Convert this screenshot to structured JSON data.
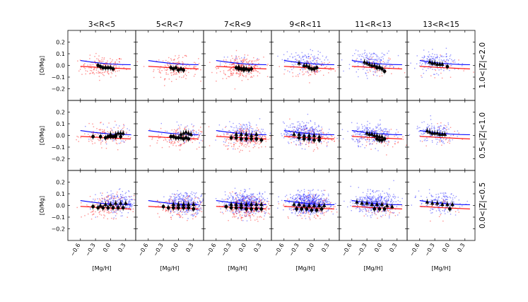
{
  "chart_data": {
    "type": "scatter",
    "description_grid": "3 rows (|Z| bins) x 6 columns (R bins)",
    "col_titles": [
      "3<R<5",
      "5<R<7",
      "7<R<9",
      "9<R<11",
      "11<R<13",
      "13<R<15"
    ],
    "row_labels": [
      "1.0<|Z|<2.0",
      "0.5<|Z|<1.0",
      "0.0<|Z|<0.5"
    ],
    "xlabel": "[Mg/H]",
    "ylabel": "[O/Mg]",
    "xlim": [
      -0.85,
      0.5
    ],
    "ylim": [
      -0.3,
      0.3
    ],
    "xticks": [
      -0.6,
      -0.3,
      0.0,
      0.3
    ],
    "xtick_labels": [
      "−0.6",
      "−0.3",
      "0.0",
      "0.3"
    ],
    "yticks": [
      -0.2,
      -0.1,
      0.0,
      0.1,
      0.2
    ],
    "ytick_labels": [
      "−0.2",
      "−0.1",
      "0.0",
      "0.1",
      "0.2"
    ],
    "colors": {
      "high_alpha": "#ff3333",
      "low_alpha": "#3333ff",
      "model_blue": "#0000ff",
      "model_red": "#ff0000",
      "binned": "#000000"
    },
    "series": [
      {
        "name": "red model track",
        "x": [
          -0.6,
          -0.4,
          -0.2,
          0.0,
          0.2,
          0.4
        ],
        "y": [
          -0.008,
          -0.013,
          -0.018,
          -0.022,
          -0.026,
          -0.03
        ]
      },
      {
        "name": "blue model track",
        "x": [
          -0.6,
          -0.4,
          -0.2,
          0.0,
          0.2,
          0.4
        ],
        "y": [
          0.042,
          0.03,
          0.02,
          0.012,
          0.008,
          0.006
        ]
      }
    ],
    "panels": [
      {
        "row": 0,
        "col": 0,
        "red_n": 170,
        "blue_n": 0,
        "red_cx": -0.15,
        "red_cy": -0.01,
        "blue_cx": 0,
        "blue_cy": 0,
        "circles": [
          [
            -0.25,
            0.0
          ],
          [
            -0.2,
            -0.01
          ],
          [
            -0.15,
            -0.02
          ],
          [
            -0.1,
            -0.02
          ],
          [
            -0.05,
            -0.02
          ],
          [
            0.0,
            -0.02
          ],
          [
            0.05,
            -0.03
          ]
        ],
        "triangles": []
      },
      {
        "row": 0,
        "col": 1,
        "red_n": 160,
        "blue_n": 0,
        "red_cx": -0.05,
        "red_cy": -0.02,
        "blue_cx": 0,
        "blue_cy": 0,
        "circles": [
          [
            -0.15,
            -0.02
          ],
          [
            -0.1,
            -0.03
          ],
          [
            -0.05,
            -0.02
          ],
          [
            0.0,
            -0.04
          ],
          [
            0.05,
            -0.03
          ],
          [
            0.1,
            -0.04
          ]
        ],
        "triangles": []
      },
      {
        "row": 0,
        "col": 2,
        "red_n": 260,
        "blue_n": 20,
        "red_cx": -0.1,
        "red_cy": -0.02,
        "blue_cx": -0.1,
        "blue_cy": 0.02,
        "circles": [
          [
            -0.2,
            -0.02
          ],
          [
            -0.15,
            -0.03
          ],
          [
            -0.1,
            -0.03
          ],
          [
            -0.05,
            -0.04
          ],
          [
            0.0,
            -0.03
          ],
          [
            0.05,
            -0.04
          ],
          [
            0.1,
            -0.03
          ]
        ],
        "triangles": [
          [
            -0.15,
            -0.01
          ],
          [
            -0.05,
            -0.02
          ]
        ]
      },
      {
        "row": 0,
        "col": 3,
        "red_n": 100,
        "blue_n": 150,
        "red_cx": -0.05,
        "red_cy": -0.02,
        "blue_cx": -0.2,
        "blue_cy": 0.03,
        "circles": [
          [
            -0.1,
            -0.02
          ],
          [
            -0.05,
            -0.03
          ],
          [
            0.0,
            -0.03
          ],
          [
            0.05,
            -0.02
          ]
        ],
        "triangles": [
          [
            -0.3,
            0.02
          ],
          [
            -0.2,
            0.0
          ],
          [
            -0.15,
            0.0
          ],
          [
            -0.1,
            -0.01
          ]
        ]
      },
      {
        "row": 0,
        "col": 4,
        "red_n": 50,
        "blue_n": 170,
        "red_cx": -0.05,
        "red_cy": -0.02,
        "blue_cx": -0.2,
        "blue_cy": 0.03,
        "circles": [
          [
            -0.1,
            -0.02
          ],
          [
            -0.05,
            -0.02
          ],
          [
            0.0,
            -0.03
          ],
          [
            0.05,
            -0.05
          ]
        ],
        "triangles": [
          [
            -0.35,
            0.03
          ],
          [
            -0.3,
            0.02
          ],
          [
            -0.25,
            0.01
          ],
          [
            -0.2,
            0.0
          ],
          [
            -0.15,
            0.0
          ],
          [
            -0.1,
            -0.01
          ],
          [
            -0.05,
            -0.01
          ]
        ]
      },
      {
        "row": 0,
        "col": 5,
        "red_n": 25,
        "blue_n": 150,
        "red_cx": -0.1,
        "red_cy": -0.01,
        "blue_cx": -0.3,
        "blue_cy": 0.03,
        "circles": [
          [
            -0.05,
            -0.01
          ]
        ],
        "triangles": [
          [
            -0.4,
            0.03
          ],
          [
            -0.35,
            0.02
          ],
          [
            -0.3,
            0.02
          ],
          [
            -0.25,
            0.01
          ],
          [
            -0.2,
            0.01
          ],
          [
            -0.15,
            0.01
          ]
        ]
      },
      {
        "row": 1,
        "col": 0,
        "red_n": 130,
        "blue_n": 40,
        "red_cx": -0.1,
        "red_cy": -0.01,
        "blue_cx": 0.1,
        "blue_cy": 0.02,
        "circles": [
          [
            -0.35,
            -0.01
          ],
          [
            -0.2,
            -0.01
          ],
          [
            -0.1,
            -0.02
          ],
          [
            -0.05,
            -0.01
          ],
          [
            0.0,
            -0.01
          ],
          [
            0.05,
            -0.01
          ],
          [
            0.1,
            -0.01
          ],
          [
            0.2,
            -0.01
          ]
        ],
        "triangles": [
          [
            0.0,
            0.01
          ],
          [
            0.1,
            0.01
          ],
          [
            0.15,
            0.02
          ],
          [
            0.2,
            0.02
          ],
          [
            0.25,
            0.02
          ]
        ]
      },
      {
        "row": 1,
        "col": 1,
        "red_n": 150,
        "blue_n": 60,
        "red_cx": 0.0,
        "red_cy": -0.02,
        "blue_cx": 0.15,
        "blue_cy": 0.02,
        "circles": [
          [
            -0.15,
            -0.01
          ],
          [
            -0.1,
            -0.01
          ],
          [
            -0.05,
            -0.02
          ],
          [
            0.0,
            -0.02
          ],
          [
            0.05,
            -0.02
          ],
          [
            0.1,
            -0.03
          ],
          [
            0.15,
            -0.02
          ],
          [
            0.2,
            -0.03
          ]
        ],
        "triangles": [
          [
            0.05,
            0.01
          ],
          [
            0.1,
            0.02
          ],
          [
            0.15,
            0.03
          ],
          [
            0.2,
            0.02
          ],
          [
            0.25,
            0.01
          ]
        ]
      },
      {
        "row": 1,
        "col": 2,
        "red_n": 260,
        "blue_n": 170,
        "red_cx": 0.0,
        "red_cy": -0.02,
        "blue_cx": -0.05,
        "blue_cy": 0.02,
        "circles": [
          [
            -0.3,
            -0.02
          ],
          [
            -0.2,
            -0.02
          ],
          [
            -0.1,
            -0.03
          ],
          [
            0.0,
            -0.03
          ],
          [
            0.1,
            -0.03
          ],
          [
            0.2,
            -0.03
          ],
          [
            0.3,
            -0.04
          ]
        ],
        "triangles": [
          [
            -0.2,
            0.01
          ],
          [
            -0.1,
            0.01
          ],
          [
            0.0,
            0.01
          ],
          [
            0.1,
            0.0
          ],
          [
            0.2,
            0.01
          ]
        ]
      },
      {
        "row": 1,
        "col": 3,
        "red_n": 110,
        "blue_n": 320,
        "red_cx": -0.05,
        "red_cy": -0.02,
        "blue_cx": -0.2,
        "blue_cy": 0.02,
        "circles": [
          [
            -0.3,
            -0.02
          ],
          [
            -0.2,
            -0.03
          ],
          [
            -0.1,
            -0.03
          ],
          [
            0.0,
            -0.04
          ],
          [
            0.1,
            -0.04
          ]
        ],
        "triangles": [
          [
            -0.4,
            0.01
          ],
          [
            -0.3,
            0.01
          ],
          [
            -0.2,
            0.0
          ],
          [
            -0.1,
            0.0
          ],
          [
            0.0,
            0.0
          ],
          [
            0.1,
            -0.01
          ]
        ]
      },
      {
        "row": 1,
        "col": 4,
        "red_n": 60,
        "blue_n": 260,
        "red_cx": -0.05,
        "red_cy": -0.03,
        "blue_cx": -0.2,
        "blue_cy": 0.01,
        "circles": [
          [
            -0.1,
            -0.03
          ],
          [
            -0.05,
            -0.04
          ],
          [
            0.0,
            -0.04
          ],
          [
            0.05,
            -0.03
          ]
        ],
        "triangles": [
          [
            -0.3,
            0.02
          ],
          [
            -0.25,
            0.01
          ],
          [
            -0.2,
            0.01
          ],
          [
            -0.15,
            0.0
          ],
          [
            -0.1,
            0.0
          ],
          [
            -0.05,
            -0.01
          ],
          [
            0.0,
            -0.01
          ]
        ]
      },
      {
        "row": 1,
        "col": 5,
        "red_n": 30,
        "blue_n": 160,
        "red_cx": -0.1,
        "red_cy": -0.01,
        "blue_cx": -0.3,
        "blue_cy": 0.02,
        "circles": [],
        "triangles": [
          [
            -0.45,
            0.04
          ],
          [
            -0.4,
            0.03
          ],
          [
            -0.35,
            0.02
          ],
          [
            -0.3,
            0.02
          ],
          [
            -0.25,
            0.02
          ],
          [
            -0.2,
            0.01
          ],
          [
            -0.15,
            0.01
          ],
          [
            -0.1,
            0.01
          ]
        ]
      },
      {
        "row": 2,
        "col": 0,
        "red_n": 170,
        "blue_n": 260,
        "red_cx": -0.05,
        "red_cy": -0.01,
        "blue_cx": 0.15,
        "blue_cy": 0.02,
        "circles": [
          [
            -0.35,
            -0.01
          ],
          [
            -0.25,
            -0.02
          ],
          [
            -0.15,
            -0.02
          ],
          [
            -0.05,
            -0.02
          ],
          [
            0.05,
            -0.02
          ],
          [
            0.15,
            -0.02
          ],
          [
            0.25,
            -0.02
          ]
        ],
        "triangles": [
          [
            -0.2,
            0.0
          ],
          [
            -0.1,
            0.01
          ],
          [
            0.0,
            0.01
          ],
          [
            0.1,
            0.02
          ],
          [
            0.2,
            0.02
          ],
          [
            0.3,
            0.02
          ]
        ]
      },
      {
        "row": 2,
        "col": 1,
        "red_n": 160,
        "blue_n": 340,
        "red_cx": 0.05,
        "red_cy": -0.02,
        "blue_cx": 0.15,
        "blue_cy": 0.02,
        "circles": [
          [
            -0.3,
            -0.01
          ],
          [
            -0.2,
            -0.02
          ],
          [
            -0.1,
            -0.02
          ],
          [
            0.0,
            -0.02
          ],
          [
            0.1,
            -0.02
          ],
          [
            0.2,
            -0.02
          ],
          [
            0.3,
            -0.03
          ]
        ],
        "triangles": [
          [
            -0.1,
            0.01
          ],
          [
            0.0,
            0.01
          ],
          [
            0.1,
            0.01
          ],
          [
            0.2,
            0.01
          ],
          [
            0.3,
            0.01
          ]
        ]
      },
      {
        "row": 2,
        "col": 2,
        "red_n": 300,
        "blue_n": 480,
        "red_cx": 0.0,
        "red_cy": -0.02,
        "blue_cx": 0.0,
        "blue_cy": 0.02,
        "circles": [
          [
            -0.4,
            -0.01
          ],
          [
            -0.3,
            -0.02
          ],
          [
            -0.2,
            -0.02
          ],
          [
            -0.1,
            -0.02
          ],
          [
            0.0,
            -0.03
          ],
          [
            0.1,
            -0.03
          ],
          [
            0.2,
            -0.03
          ],
          [
            0.3,
            -0.03
          ]
        ],
        "triangles": [
          [
            -0.3,
            0.01
          ],
          [
            -0.2,
            0.01
          ],
          [
            -0.1,
            0.01
          ],
          [
            0.0,
            0.01
          ],
          [
            0.1,
            0.01
          ],
          [
            0.2,
            0.01
          ],
          [
            0.3,
            0.01
          ]
        ]
      },
      {
        "row": 2,
        "col": 3,
        "red_n": 160,
        "blue_n": 600,
        "red_cx": -0.05,
        "red_cy": -0.02,
        "blue_cx": -0.1,
        "blue_cy": 0.02,
        "circles": [
          [
            -0.35,
            -0.03
          ],
          [
            -0.25,
            -0.03
          ],
          [
            -0.15,
            -0.03
          ],
          [
            -0.05,
            -0.04
          ],
          [
            0.05,
            -0.04
          ],
          [
            0.15,
            -0.03
          ]
        ],
        "triangles": [
          [
            -0.4,
            0.01
          ],
          [
            -0.3,
            0.01
          ],
          [
            -0.2,
            0.0
          ],
          [
            -0.1,
            0.0
          ],
          [
            0.0,
            0.0
          ],
          [
            0.1,
            0.0
          ],
          [
            0.2,
            0.0
          ]
        ]
      },
      {
        "row": 2,
        "col": 4,
        "red_n": 60,
        "blue_n": 420,
        "red_cx": -0.05,
        "red_cy": -0.03,
        "blue_cx": -0.15,
        "blue_cy": 0.02,
        "circles": [
          [
            -0.15,
            -0.03
          ],
          [
            -0.05,
            -0.03
          ],
          [
            0.05,
            -0.03
          ]
        ],
        "triangles": [
          [
            -0.5,
            0.03
          ],
          [
            -0.4,
            0.02
          ],
          [
            -0.3,
            0.02
          ],
          [
            -0.2,
            0.01
          ],
          [
            -0.1,
            0.01
          ],
          [
            0.0,
            0.01
          ],
          [
            0.1,
            0.0
          ],
          [
            0.2,
            -0.01
          ]
        ]
      },
      {
        "row": 2,
        "col": 5,
        "red_n": 25,
        "blue_n": 170,
        "red_cx": -0.1,
        "red_cy": -0.01,
        "blue_cx": -0.2,
        "blue_cy": 0.02,
        "circles": [
          [
            0.0,
            -0.03
          ]
        ],
        "triangles": [
          [
            -0.45,
            0.03
          ],
          [
            -0.35,
            0.02
          ],
          [
            -0.25,
            0.02
          ],
          [
            -0.15,
            0.01
          ],
          [
            -0.05,
            0.01
          ],
          [
            0.05,
            0.01
          ]
        ]
      }
    ]
  }
}
